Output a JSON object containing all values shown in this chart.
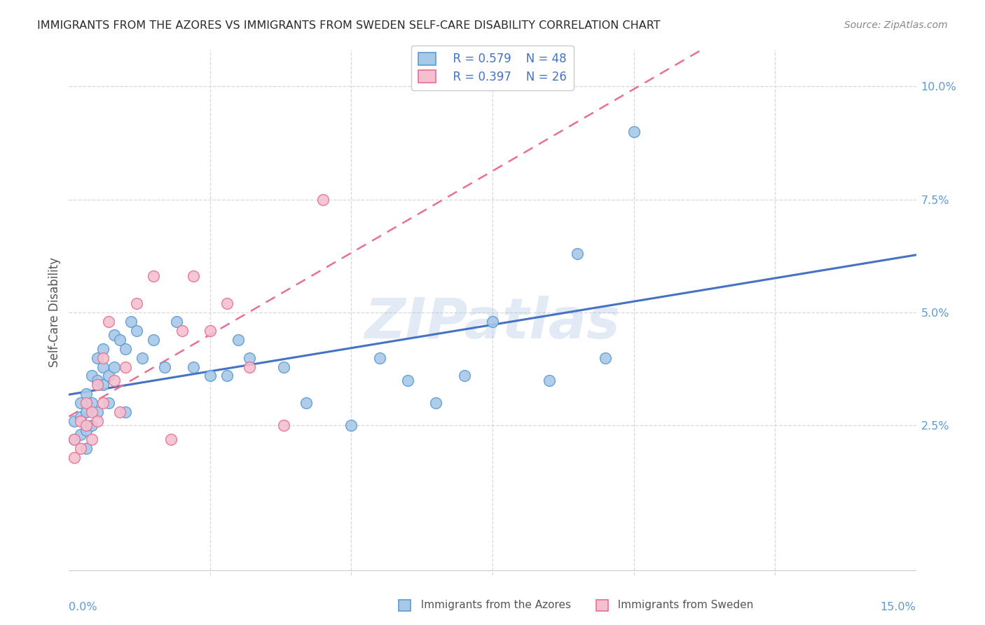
{
  "title": "IMMIGRANTS FROM THE AZORES VS IMMIGRANTS FROM SWEDEN SELF-CARE DISABILITY CORRELATION CHART",
  "source": "Source: ZipAtlas.com",
  "ylabel": "Self-Care Disability",
  "watermark": "ZIPatlas",
  "legend_r1": "R = 0.579",
  "legend_n1": "N = 48",
  "legend_r2": "R = 0.397",
  "legend_n2": "N = 26",
  "color_azores_fill": "#a8c8e8",
  "color_azores_edge": "#5b9bd5",
  "color_sweden_fill": "#f4c0d0",
  "color_sweden_edge": "#e87090",
  "color_line_azores": "#4472c4",
  "color_line_sweden": "#e878a0",
  "xlim": [
    0.0,
    0.15
  ],
  "ylim": [
    -0.008,
    0.108
  ],
  "xticks": [
    0.0,
    0.025,
    0.05,
    0.075,
    0.1,
    0.125,
    0.15
  ],
  "xticklabels": [
    "0.0%",
    "",
    "",
    "",
    "",
    "",
    "15.0%"
  ],
  "yticks": [
    0.025,
    0.05,
    0.075,
    0.1
  ],
  "yticklabels": [
    "2.5%",
    "5.0%",
    "7.5%",
    "10.0%"
  ],
  "background_color": "#ffffff",
  "scatter_azores_x": [
    0.001,
    0.001,
    0.002,
    0.002,
    0.002,
    0.003,
    0.003,
    0.003,
    0.003,
    0.004,
    0.004,
    0.004,
    0.005,
    0.005,
    0.005,
    0.006,
    0.006,
    0.006,
    0.007,
    0.007,
    0.008,
    0.008,
    0.009,
    0.01,
    0.01,
    0.011,
    0.012,
    0.013,
    0.015,
    0.017,
    0.019,
    0.022,
    0.025,
    0.028,
    0.03,
    0.032,
    0.038,
    0.042,
    0.05,
    0.055,
    0.06,
    0.065,
    0.07,
    0.075,
    0.085,
    0.09,
    0.095,
    0.1
  ],
  "scatter_azores_y": [
    0.022,
    0.026,
    0.027,
    0.023,
    0.03,
    0.028,
    0.032,
    0.024,
    0.02,
    0.036,
    0.03,
    0.025,
    0.04,
    0.035,
    0.028,
    0.038,
    0.034,
    0.042,
    0.036,
    0.03,
    0.045,
    0.038,
    0.044,
    0.042,
    0.028,
    0.048,
    0.046,
    0.04,
    0.044,
    0.038,
    0.048,
    0.038,
    0.036,
    0.036,
    0.044,
    0.04,
    0.038,
    0.03,
    0.025,
    0.04,
    0.035,
    0.03,
    0.036,
    0.048,
    0.035,
    0.063,
    0.04,
    0.09
  ],
  "scatter_sweden_x": [
    0.001,
    0.001,
    0.002,
    0.002,
    0.003,
    0.003,
    0.004,
    0.004,
    0.005,
    0.005,
    0.006,
    0.006,
    0.007,
    0.008,
    0.009,
    0.01,
    0.012,
    0.015,
    0.018,
    0.02,
    0.022,
    0.025,
    0.028,
    0.032,
    0.038,
    0.045
  ],
  "scatter_sweden_y": [
    0.022,
    0.018,
    0.026,
    0.02,
    0.03,
    0.025,
    0.028,
    0.022,
    0.034,
    0.026,
    0.04,
    0.03,
    0.048,
    0.035,
    0.028,
    0.038,
    0.052,
    0.058,
    0.022,
    0.046,
    0.058,
    0.046,
    0.052,
    0.038,
    0.025,
    0.075
  ]
}
